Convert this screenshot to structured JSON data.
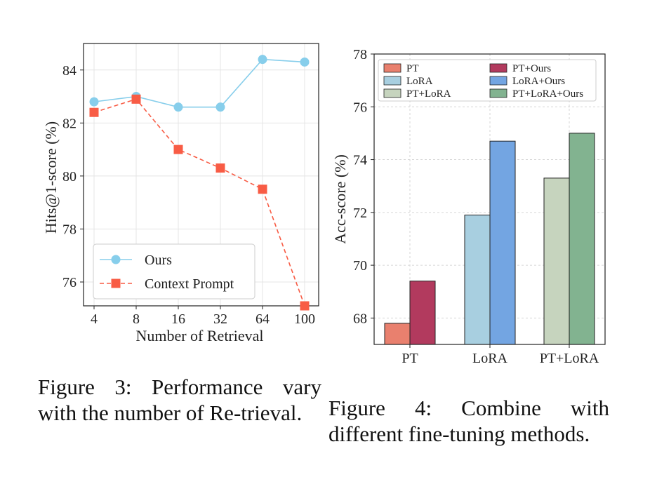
{
  "figure3": {
    "caption": "Figure 3: Performance vary with the number of Re-trieval.",
    "chart_data": {
      "type": "line",
      "title": "",
      "xlabel": "Number of Retrieval",
      "ylabel": "Hits@1-score (%)",
      "categories": [
        "4",
        "8",
        "16",
        "32",
        "64",
        "100"
      ],
      "yticks": [
        76,
        78,
        80,
        82,
        84
      ],
      "ylim": [
        75.1,
        85.0
      ],
      "grid": true,
      "legend_position": "lower-left",
      "series": [
        {
          "name": "Ours",
          "marker": "circle",
          "line": "solid",
          "color": "#87ceeb",
          "values": [
            82.8,
            83.0,
            82.6,
            82.6,
            84.4,
            84.3
          ]
        },
        {
          "name": "Context Prompt",
          "marker": "square",
          "line": "dashed",
          "color": "#f85c45",
          "values": [
            82.4,
            82.9,
            81.0,
            80.3,
            79.5,
            75.1
          ]
        }
      ]
    }
  },
  "figure4": {
    "caption": "Figure 4: Combine with different fine-tuning methods.",
    "chart_data": {
      "type": "bar",
      "title": "",
      "xlabel": "",
      "ylabel": "Acc-score (%)",
      "categories": [
        "PT",
        "LoRA",
        "PT+LoRA"
      ],
      "yticks": [
        68,
        70,
        72,
        74,
        76,
        78
      ],
      "ylim": [
        67.0,
        78.0
      ],
      "grid": true,
      "legend_position": "top",
      "series": [
        {
          "name": "PT",
          "color": "#e9806e",
          "values": [
            67.8,
            null,
            null
          ]
        },
        {
          "name": "PT+Ours",
          "color": "#b23a5e",
          "values": [
            69.4,
            null,
            null
          ]
        },
        {
          "name": "LoRA",
          "color": "#a8cfe0",
          "values": [
            null,
            71.9,
            null
          ]
        },
        {
          "name": "LoRA+Ours",
          "color": "#73a5e2",
          "values": [
            null,
            74.7,
            null
          ]
        },
        {
          "name": "PT+LoRA",
          "color": "#c6d4be",
          "values": [
            null,
            null,
            73.3
          ]
        },
        {
          "name": "PT+LoRA+Ours",
          "color": "#82b390",
          "values": [
            null,
            null,
            75.0
          ]
        }
      ]
    }
  }
}
